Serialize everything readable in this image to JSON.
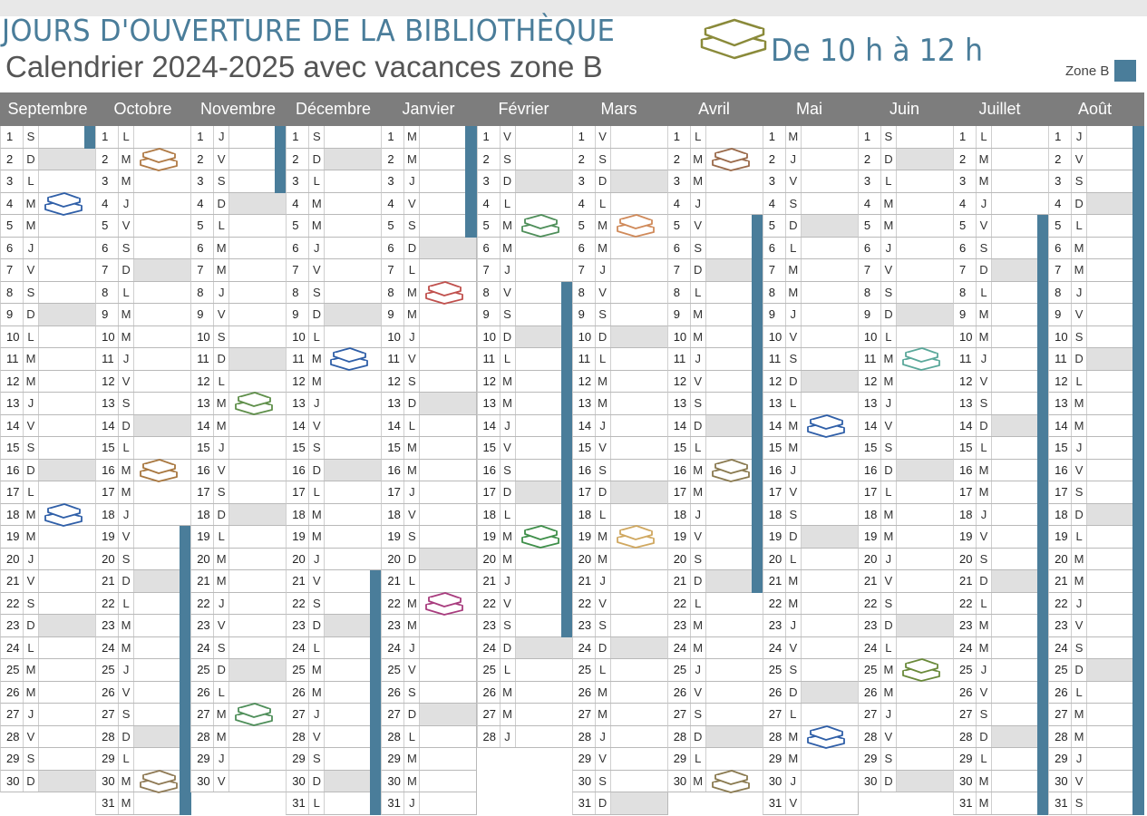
{
  "header": {
    "title": "JOURS D'OUVERTURE DE LA BIBLIOTHÈQUE",
    "subtitle": "Calendrier 2024-2025 avec vacances zone B",
    "hours": "De 10 h à 12 h",
    "legend_label": "Zone B",
    "legend_color": "#4a7d9a"
  },
  "weekday_letters": [
    "L",
    "M",
    "M",
    "J",
    "V",
    "S",
    "D"
  ],
  "months": [
    {
      "name": "Septembre",
      "days": 30,
      "first_dow": 6,
      "vacation": [
        1
      ]
    },
    {
      "name": "Octobre",
      "days": 31,
      "first_dow": 1,
      "vacation": [
        19,
        20,
        21,
        22,
        23,
        24,
        25,
        26,
        27,
        28,
        29,
        30,
        31
      ]
    },
    {
      "name": "Novembre",
      "days": 30,
      "first_dow": 4,
      "vacation": [
        1,
        2,
        3
      ]
    },
    {
      "name": "Décembre",
      "days": 31,
      "first_dow": 6,
      "vacation": [
        21,
        22,
        23,
        24,
        25,
        26,
        27,
        28,
        29,
        30,
        31
      ]
    },
    {
      "name": "Janvier",
      "days": 31,
      "first_dow": 2,
      "vacation": [
        1,
        2,
        3,
        4,
        5
      ]
    },
    {
      "name": "Février",
      "days": 28,
      "first_dow": 5,
      "vacation": [
        8,
        9,
        10,
        11,
        12,
        13,
        14,
        15,
        16,
        17,
        18,
        19,
        20,
        21,
        22,
        23
      ]
    },
    {
      "name": "Mars",
      "days": 31,
      "first_dow": 5,
      "vacation": []
    },
    {
      "name": "Avril",
      "days": 30,
      "first_dow": 1,
      "vacation": [
        5,
        6,
        7,
        8,
        9,
        10,
        11,
        12,
        13,
        14,
        15,
        16,
        17,
        18,
        19,
        20,
        21
      ]
    },
    {
      "name": "Mai",
      "days": 31,
      "first_dow": 3,
      "vacation": []
    },
    {
      "name": "Juin",
      "days": 30,
      "first_dow": 6,
      "vacation": []
    },
    {
      "name": "Juillet",
      "days": 31,
      "first_dow": 1,
      "vacation": [
        5,
        6,
        7,
        8,
        9,
        10,
        11,
        12,
        13,
        14,
        15,
        16,
        17,
        18,
        19,
        20,
        21,
        22,
        23,
        24,
        25,
        26,
        27,
        28,
        29,
        30,
        31
      ]
    },
    {
      "name": "Août",
      "days": 31,
      "first_dow": 4,
      "vacation": [
        1,
        2,
        3,
        4,
        5,
        6,
        7,
        8,
        9,
        10,
        11,
        12,
        13,
        14,
        15,
        16,
        17,
        18,
        19,
        20,
        21,
        22,
        23,
        24,
        25,
        26,
        27,
        28,
        29,
        30,
        31
      ]
    }
  ],
  "opening_days": [
    {
      "month": 0,
      "day": 4,
      "color": "#2f5fa8"
    },
    {
      "month": 0,
      "day": 18,
      "color": "#2f5fa8"
    },
    {
      "month": 1,
      "day": 2,
      "color": "#b07a45"
    },
    {
      "month": 1,
      "day": 16,
      "color": "#a8773f"
    },
    {
      "month": 1,
      "day": 30,
      "color": "#8f7a55"
    },
    {
      "month": 2,
      "day": 13,
      "color": "#5f8f4a"
    },
    {
      "month": 2,
      "day": 27,
      "color": "#4f8f5a"
    },
    {
      "month": 3,
      "day": 11,
      "color": "#2f5fa8"
    },
    {
      "month": 4,
      "day": 8,
      "color": "#c0504d"
    },
    {
      "month": 4,
      "day": 22,
      "color": "#a83c7e"
    },
    {
      "month": 5,
      "day": 5,
      "color": "#4f8f5a"
    },
    {
      "month": 5,
      "day": 19,
      "color": "#3f8f4a"
    },
    {
      "month": 6,
      "day": 5,
      "color": "#d08a5a"
    },
    {
      "month": 6,
      "day": 19,
      "color": "#d0a860"
    },
    {
      "month": 7,
      "day": 2,
      "color": "#9a6a4a"
    },
    {
      "month": 7,
      "day": 16,
      "color": "#8a7a50"
    },
    {
      "month": 7,
      "day": 30,
      "color": "#8a7a50"
    },
    {
      "month": 8,
      "day": 14,
      "color": "#2f5fa8"
    },
    {
      "month": 8,
      "day": 28,
      "color": "#2f5fa8"
    },
    {
      "month": 9,
      "day": 11,
      "color": "#5aa89a"
    },
    {
      "month": 9,
      "day": 25,
      "color": "#6a8a3a"
    }
  ],
  "title_books_color": "#8a8a3a"
}
